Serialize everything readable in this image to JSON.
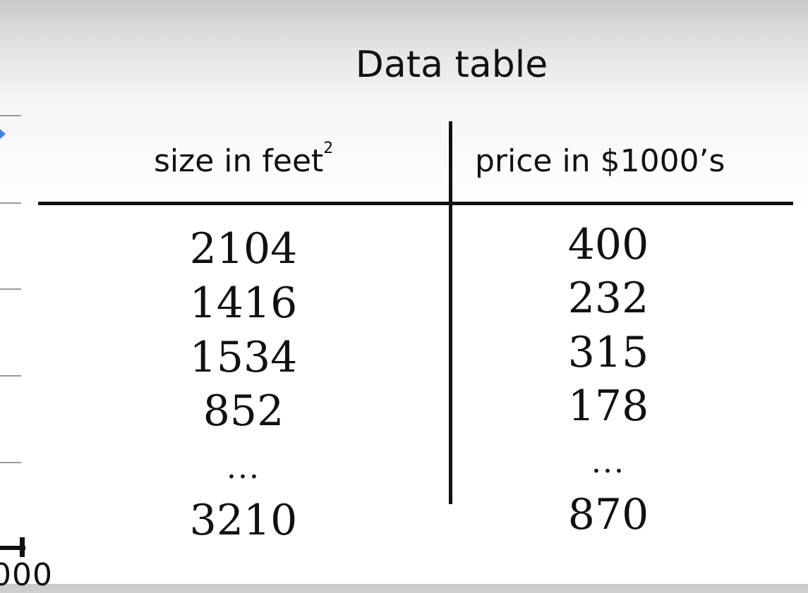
{
  "table": {
    "title": "Data table",
    "headers": {
      "size": "size in feet",
      "size_superscript": "2",
      "price": "price in $1000’s"
    },
    "size_values": [
      "2104",
      "1416",
      "1534",
      "852",
      "...",
      "3210"
    ],
    "price_values": [
      "400",
      "232",
      "315",
      "178",
      "...",
      "870"
    ]
  },
  "background_chart": {
    "axis_label_fragment": "000",
    "marker_color": "#3b82f6"
  }
}
